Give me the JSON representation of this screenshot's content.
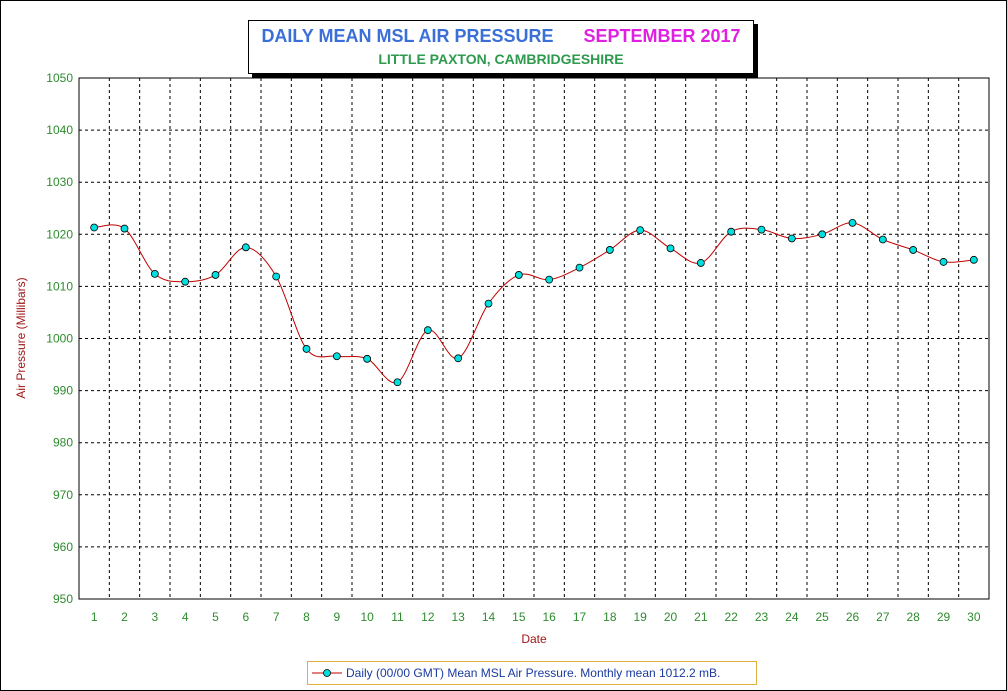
{
  "title": {
    "main": "DAILY MEAN MSL AIR PRESSURE",
    "month": "SEPTEMBER 2017",
    "subtitle": "LITTLE PAXTON, CAMBRIDGESHIRE"
  },
  "colors": {
    "line": "#c00000",
    "marker": "#00e0e0",
    "grid": "#000000",
    "tick": "#2e8b2e",
    "axis_label": "#a01818"
  },
  "legend": {
    "text": "Daily (00/00 GMT) Mean MSL Air Pressure. Monthly mean 1012.2 mB."
  },
  "chart_data": {
    "type": "line",
    "xlabel": "Date",
    "ylabel": "Air Pressure (Millibars)",
    "ylim": [
      950,
      1050
    ],
    "y_ticks": [
      950,
      960,
      970,
      980,
      990,
      1000,
      1010,
      1020,
      1030,
      1040,
      1050
    ],
    "x": [
      1,
      2,
      3,
      4,
      5,
      6,
      7,
      8,
      9,
      10,
      11,
      12,
      13,
      14,
      15,
      16,
      17,
      18,
      19,
      20,
      21,
      22,
      23,
      24,
      25,
      26,
      27,
      28,
      29,
      30
    ],
    "series": [
      {
        "name": "Daily (00/00 GMT) Mean MSL Air Pressure",
        "values": [
          1021.3,
          1021.1,
          1012.4,
          1010.9,
          1012.2,
          1017.5,
          1011.9,
          998.0,
          996.6,
          996.1,
          991.6,
          1001.6,
          996.2,
          1006.7,
          1012.2,
          1011.3,
          1013.6,
          1017.0,
          1020.8,
          1017.3,
          1014.5,
          1020.5,
          1020.9,
          1019.2,
          1020.0,
          1022.2,
          1019.0,
          1017.0,
          1014.7,
          1015.1
        ]
      }
    ],
    "grid": true,
    "legend_position": "bottom"
  }
}
